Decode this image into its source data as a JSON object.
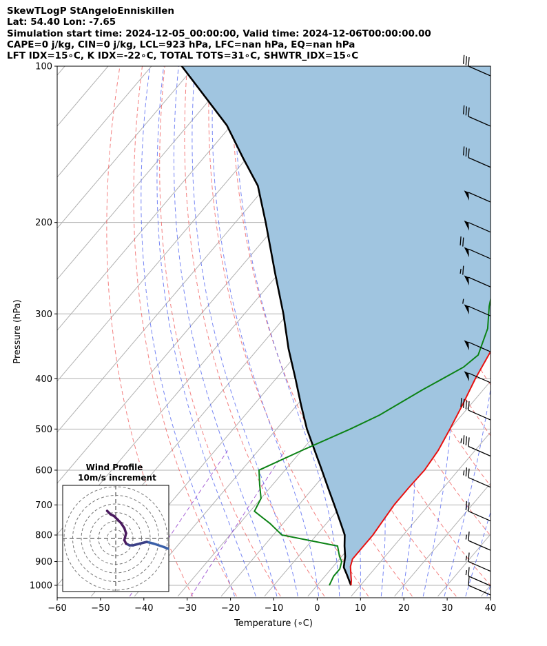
{
  "header": {
    "line1": "SkewTLogP StAngeloEnniskillen",
    "line2": "Lat: 54.40   Lon: -7.65",
    "line3": "Simulation start time: 2024-12-05_00:00:00, Valid time: 2024-12-06T00:00:00.00",
    "line4": "CAPE=0 j/kg, CIN=0 j/kg, LCL=923 hPa, LFC=nan hPa, EQ=nan hPa",
    "line5": "LFT IDX=15∘C, K IDX=-22∘C, TOTAL TOTS=31∘C, SHWTR_IDX=15∘C"
  },
  "chart_data": [
    {
      "type": "line",
      "subtype": "skew-t log-p",
      "xlabel": "Temperature (∘C)",
      "ylabel": "Pressure (hPa)",
      "xlim": [
        -60,
        40
      ],
      "ylim": [
        1050,
        100
      ],
      "y_scale": "log",
      "x_ticks": [
        "−60",
        "−50",
        "−40",
        "−30",
        "−20",
        "−10",
        "0",
        "10",
        "20",
        "30",
        "40"
      ],
      "y_ticks": [
        "100",
        "200",
        "300",
        "400",
        "500",
        "600",
        "700",
        "800",
        "900",
        "1000"
      ],
      "grid": true,
      "series": [
        {
          "role": "temperature",
          "color": "#e8100f",
          "points": [
            [
              7.8,
              1000
            ],
            [
              7.0,
              980
            ],
            [
              5.5,
              950
            ],
            [
              4.0,
              920
            ],
            [
              3.0,
              890
            ],
            [
              3.0,
              850
            ],
            [
              3.0,
              800
            ],
            [
              2.5,
              750
            ],
            [
              2.0,
              700
            ],
            [
              2.0,
              650
            ],
            [
              2.2,
              600
            ],
            [
              1.5,
              550
            ],
            [
              0,
              500
            ],
            [
              -1.8,
              450
            ],
            [
              -4.0,
              400
            ],
            [
              -6.0,
              350
            ],
            [
              -9.3,
              300
            ],
            [
              -11.5,
              270
            ],
            [
              -12.0,
              250
            ],
            [
              -11,
              220
            ],
            [
              -10,
              200
            ],
            [
              -8,
              190
            ],
            [
              -5,
              175
            ],
            [
              0,
              155
            ],
            [
              5,
              135
            ],
            [
              9,
              118
            ],
            [
              13,
              100
            ]
          ]
        },
        {
          "role": "dewpoint",
          "color": "#0b8214",
          "points": [
            [
              2.8,
              1000
            ],
            [
              2.0,
              960
            ],
            [
              2.0,
              930
            ],
            [
              1.0,
              900
            ],
            [
              -0.5,
              880
            ],
            [
              -3.0,
              840
            ],
            [
              -18,
              800
            ],
            [
              -23,
              760
            ],
            [
              -29,
              720
            ],
            [
              -30,
              680
            ],
            [
              -33,
              640
            ],
            [
              -36,
              600
            ],
            [
              -30,
              550
            ],
            [
              -23,
              500
            ],
            [
              -19,
              470
            ],
            [
              -14,
              420
            ],
            [
              -9,
              380
            ],
            [
              -8,
              360
            ],
            [
              -11,
              320
            ],
            [
              -15,
              290
            ],
            [
              -18,
              265
            ],
            [
              -18.5,
              230
            ],
            [
              -17.5,
              210
            ],
            [
              -18,
              200
            ],
            [
              -19,
              180
            ],
            [
              -20,
              165
            ],
            [
              -19.5,
              150
            ],
            [
              -17,
              135
            ],
            [
              -13,
              120
            ],
            [
              -9,
              108
            ],
            [
              -5,
              100
            ]
          ]
        },
        {
          "role": "parcel",
          "color": "#000000",
          "points": [
            [
              7.8,
              1000
            ],
            [
              4.5,
              950
            ],
            [
              2.6,
              923
            ],
            [
              0.8,
              880
            ],
            [
              -1.4,
              840
            ],
            [
              -3.5,
              800
            ],
            [
              -7.5,
              750
            ],
            [
              -11.8,
              700
            ],
            [
              -16.5,
              650
            ],
            [
              -21.5,
              600
            ],
            [
              -27,
              550
            ],
            [
              -33,
              500
            ],
            [
              -39,
              450
            ],
            [
              -45.5,
              400
            ],
            [
              -53,
              350
            ],
            [
              -61,
              300
            ],
            [
              -71,
              250
            ],
            [
              -83,
              200
            ],
            [
              -92,
              170
            ],
            [
              -101,
              150
            ],
            [
              -111,
              130
            ],
            [
              -125,
              110
            ],
            [
              -133,
              100
            ]
          ]
        }
      ],
      "shading": {
        "between": "parcel and temperature",
        "color": "#a0c5e0"
      },
      "background_lines": {
        "isotherms_color": "#b0b0b0",
        "dry_adiabats_color": "#f06060",
        "moist_adiabats_color": "#4a5ef0",
        "mixing_ratio_color": "#9b4fd0"
      },
      "wind_barbs": [
        {
          "p": 100,
          "speed_kt": 30
        },
        {
          "p": 125,
          "speed_kt": 30
        },
        {
          "p": 150,
          "speed_kt": 30
        },
        {
          "p": 175,
          "speed_kt": 50
        },
        {
          "p": 200,
          "speed_kt": 50
        },
        {
          "p": 225,
          "speed_kt": 70
        },
        {
          "p": 255,
          "speed_kt": 65
        },
        {
          "p": 290,
          "speed_kt": 55
        },
        {
          "p": 340,
          "speed_kt": 50
        },
        {
          "p": 390,
          "speed_kt": 50
        },
        {
          "p": 460,
          "speed_kt": 40
        },
        {
          "p": 540,
          "speed_kt": 35
        },
        {
          "p": 620,
          "speed_kt": 25
        },
        {
          "p": 720,
          "speed_kt": 20
        },
        {
          "p": 820,
          "speed_kt": 15
        },
        {
          "p": 900,
          "speed_kt": 15
        },
        {
          "p": 960,
          "speed_kt": 15
        },
        {
          "p": 1000,
          "speed_kt": 10
        }
      ]
    },
    {
      "type": "scatter",
      "subtype": "hodograph",
      "title": "Wind Profile",
      "subtitle": "10m/s increment",
      "series_color_low": "#3a5fa8",
      "series_color_high": "#4a1a5e",
      "points": [
        [
          45,
          -5
        ],
        [
          40,
          -6
        ],
        [
          33,
          -7
        ],
        [
          28,
          -5
        ],
        [
          22,
          -3
        ],
        [
          18,
          -2
        ],
        [
          14,
          -3
        ],
        [
          10,
          -4
        ],
        [
          8,
          -4
        ],
        [
          6,
          -3
        ],
        [
          5,
          -1
        ],
        [
          6,
          3
        ],
        [
          5,
          6
        ],
        [
          3,
          9
        ],
        [
          1,
          11
        ],
        [
          -1,
          13
        ],
        [
          -3,
          14
        ],
        [
          -5,
          16
        ]
      ]
    }
  ]
}
